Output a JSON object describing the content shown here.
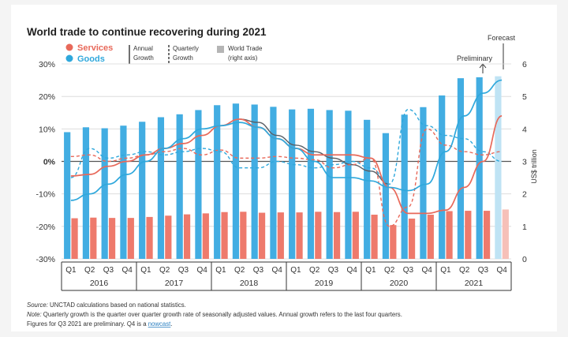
{
  "title": "World trade to continue recovering during 2021",
  "legend": {
    "services": "Services",
    "goods": "Goods",
    "annual_line1": "Annual",
    "annual_line2": "Growth",
    "quarterly_line1": "Quarterly",
    "quarterly_line2": "Growth",
    "trade_line1": "World Trade",
    "trade_line2": "(right axis)"
  },
  "annotations": {
    "forecast": "Forecast",
    "preliminary": "Preliminary"
  },
  "right_axis_label": "US$ trillion",
  "footnotes": {
    "source_prefix": "Source:",
    "source_text": " UNCTAD calculations based on national statistics.",
    "note_prefix": "Note:",
    "note_text": " Quarterly growth is the quarter over quarter growth rate of seasonally adjusted values. Annual growth refers to the last four quarters.",
    "line3_text": "Figures for Q3 2021 are preliminary. Q4 is a ",
    "line3_link": "nowcast",
    "line3_end": "."
  },
  "colors": {
    "services": "#e8695a",
    "goods": "#2fa8dc",
    "goods_bar": "#42ade2",
    "services_bar": "#ee7a6c",
    "forecast_goods_bar": "#bfe3f4",
    "forecast_services_bar": "#f6c0b8",
    "growth_line": "#5a5f66",
    "grid": "#d8d8d8"
  },
  "chart_data": {
    "type": "bar+line",
    "categories": [
      "Q1",
      "Q2",
      "Q3",
      "Q4",
      "Q1",
      "Q2",
      "Q3",
      "Q4",
      "Q1",
      "Q2",
      "Q3",
      "Q4",
      "Q1",
      "Q2",
      "Q3",
      "Q4",
      "Q1",
      "Q2",
      "Q3",
      "Q4",
      "Q1",
      "Q2",
      "Q3",
      "Q4"
    ],
    "years": [
      "2016",
      "2017",
      "2018",
      "2019",
      "2020",
      "2021"
    ],
    "left_axis": {
      "ticks": [
        "30%",
        "20%",
        "10%",
        "0%",
        "-10%",
        "-20%",
        "-30%"
      ],
      "range": [
        -30,
        30
      ],
      "unit": "%"
    },
    "right_axis": {
      "ticks": [
        "6",
        "5",
        "4",
        "3",
        "2",
        "1",
        "0"
      ],
      "range": [
        0,
        6
      ],
      "label": "US$ trillion"
    },
    "series": [
      {
        "name": "Goods",
        "kind": "bar",
        "axis": "right",
        "values": [
          3.9,
          4.05,
          4.02,
          4.1,
          4.22,
          4.36,
          4.45,
          4.58,
          4.73,
          4.78,
          4.75,
          4.68,
          4.6,
          4.62,
          4.58,
          4.56,
          4.28,
          3.87,
          4.44,
          4.67,
          5.03,
          5.56,
          5.59,
          5.62
        ]
      },
      {
        "name": "Services",
        "kind": "bar",
        "axis": "right",
        "values": [
          1.25,
          1.27,
          1.26,
          1.26,
          1.29,
          1.33,
          1.37,
          1.4,
          1.44,
          1.45,
          1.42,
          1.43,
          1.43,
          1.45,
          1.44,
          1.45,
          1.36,
          1.04,
          1.24,
          1.36,
          1.47,
          1.48,
          1.48,
          1.52
        ]
      },
      {
        "name": "Services",
        "kind": "line",
        "style": "solid",
        "axis": "left",
        "values": [
          -4.5,
          -4,
          -1.5,
          0,
          2,
          4,
          5.5,
          8,
          11,
          13,
          10.5,
          7,
          4,
          2,
          2,
          2,
          1,
          -8,
          -16,
          -16,
          -15,
          -8,
          0,
          14
        ]
      },
      {
        "name": "Goods",
        "kind": "line",
        "style": "solid",
        "axis": "left",
        "values": [
          -12,
          -10,
          -7,
          -4,
          0,
          4,
          7,
          10,
          11,
          12,
          10.5,
          7,
          4,
          0,
          -5,
          -5,
          -6,
          -8,
          -9,
          -7,
          3,
          14,
          21,
          25
        ]
      },
      {
        "name": "Services",
        "kind": "line",
        "style": "dashed",
        "axis": "left",
        "values": [
          1.5,
          2,
          0,
          1,
          2,
          3,
          4,
          2,
          3.5,
          1,
          1,
          1.5,
          1,
          0.5,
          -2,
          -1,
          1,
          -20,
          -14,
          10,
          5,
          3,
          2,
          3
        ]
      },
      {
        "name": "Goods",
        "kind": "line",
        "style": "dashed",
        "axis": "left",
        "values": [
          -5,
          4,
          1,
          2,
          3,
          2,
          3,
          4,
          3,
          -2,
          -2,
          0,
          -1,
          -2,
          -1,
          0,
          -2,
          -7,
          16,
          11,
          8,
          7,
          3,
          0
        ]
      },
      {
        "name": "Annual growth (total)",
        "kind": "line",
        "style": "solid",
        "axis": "left",
        "values": [
          null,
          null,
          null,
          null,
          null,
          null,
          null,
          null,
          null,
          13,
          12,
          8,
          5,
          3,
          1,
          -1,
          -3,
          -7,
          null,
          null,
          null,
          null,
          null,
          null
        ]
      }
    ],
    "preliminary_category_index": 22,
    "forecast_category_index": 23
  }
}
